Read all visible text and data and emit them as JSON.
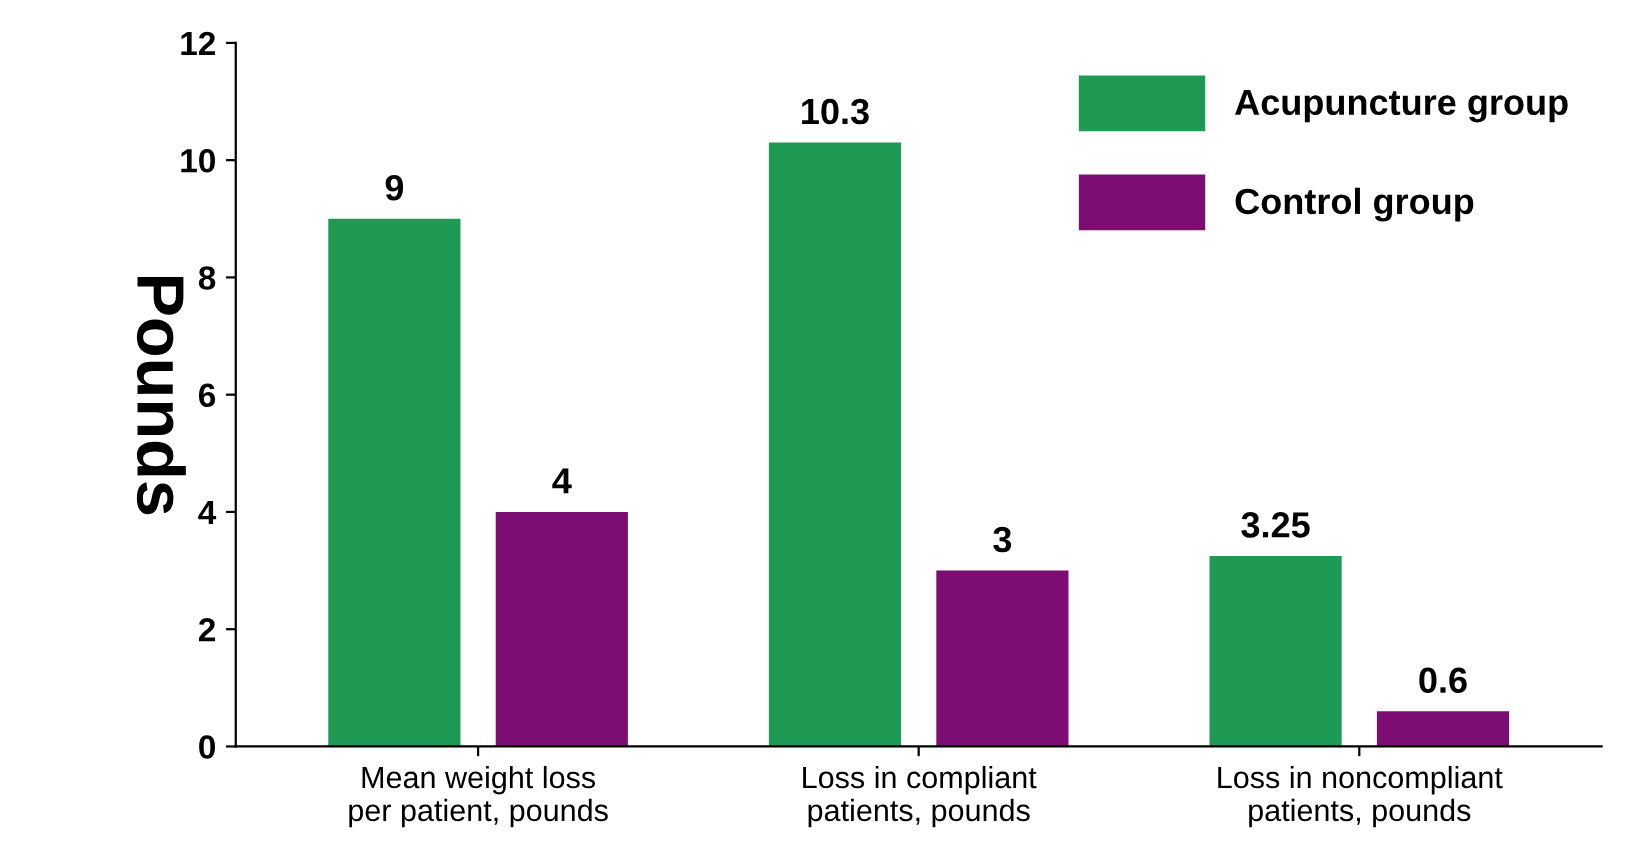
{
  "chart_data": {
    "type": "bar",
    "ylabel": "Pounds",
    "categories": [
      "Mean weight loss\nper patient, pounds",
      "Loss in compliant\npatients, pounds",
      "Loss in noncompliant\npatients, pounds"
    ],
    "series": [
      {
        "name": "Acupuncture group",
        "color": "#1e9a55",
        "values": [
          9,
          10.3,
          3.25
        ]
      },
      {
        "name": "Control group",
        "color": "#7b0d73",
        "values": [
          4,
          3,
          0.6
        ]
      }
    ],
    "ylim": [
      0,
      12
    ],
    "yticks": [
      0,
      2,
      4,
      6,
      8,
      10,
      12
    ],
    "data_labels": true,
    "legend": "top right",
    "grid": false
  }
}
